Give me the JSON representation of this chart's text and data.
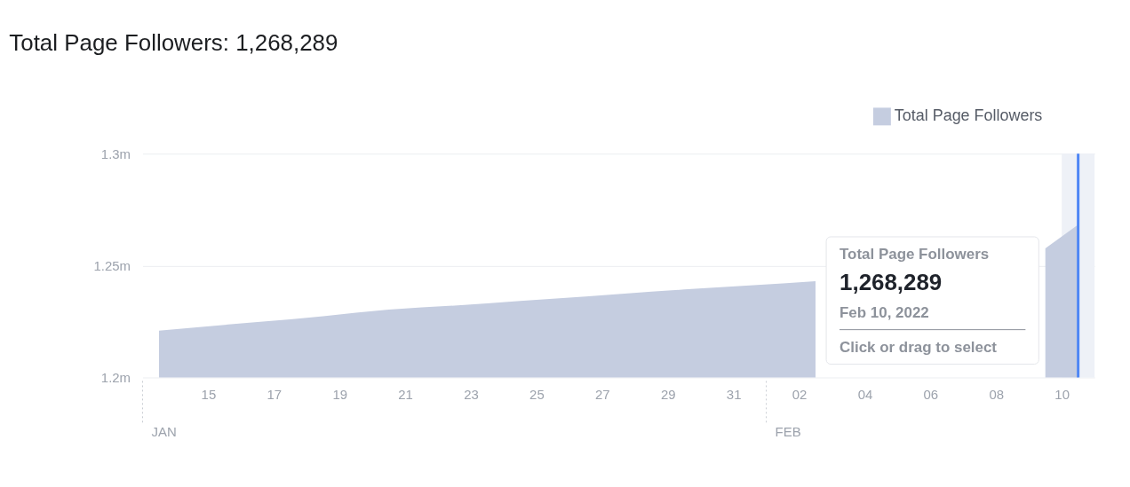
{
  "chart_data": {
    "type": "area",
    "title": "Total Page Followers: 1,268,289",
    "x": [
      "2022-01-13T12:00",
      "2022-01-14T12:00",
      "2022-01-15T12:00",
      "2022-01-16T12:00",
      "2022-01-17T12:00",
      "2022-01-18T12:00",
      "2022-01-19T12:00",
      "2022-01-20T12:00",
      "2022-01-21T12:00",
      "2022-01-22T12:00",
      "2022-01-23T12:00",
      "2022-01-24T12:00",
      "2022-01-25T12:00",
      "2022-01-26T12:00",
      "2022-01-27T12:00",
      "2022-01-28T12:00",
      "2022-01-29T12:00",
      "2022-01-30T12:00",
      "2022-01-31T12:00",
      "2022-02-01T12:00",
      "2022-02-02T12:00",
      "2022-02-03T12:00",
      "2022-02-04T12:00",
      "2022-02-05T12:00",
      "2022-02-06T12:00",
      "2022-02-07T12:00",
      "2022-02-08T12:00",
      "2022-02-09T12:00",
      "2022-02-10T12:00"
    ],
    "series": [
      {
        "name": "Total Page Followers",
        "color": "#c5cde0",
        "values": [
          1220900,
          1222200,
          1223500,
          1224800,
          1226000,
          1227300,
          1228900,
          1230300,
          1231300,
          1232100,
          1233100,
          1234200,
          1235200,
          1236200,
          1237300,
          1238300,
          1239300,
          1240200,
          1241100,
          1242000,
          1243000,
          null,
          null,
          null,
          null,
          null,
          null,
          1257700,
          1268289
        ]
      }
    ],
    "ylim": [
      1200000,
      1300000
    ],
    "yticks": [
      {
        "value": 1200000,
        "label": "1.2m"
      },
      {
        "value": 1250000,
        "label": "1.25m"
      },
      {
        "value": 1300000,
        "label": "1.3m"
      }
    ],
    "xlim": [
      "2022-01-13",
      "2022-02-11"
    ],
    "xticks": [
      {
        "value": "2022-01-15",
        "label": "15"
      },
      {
        "value": "2022-01-17",
        "label": "17"
      },
      {
        "value": "2022-01-19",
        "label": "19"
      },
      {
        "value": "2022-01-21",
        "label": "21"
      },
      {
        "value": "2022-01-23",
        "label": "23"
      },
      {
        "value": "2022-01-25",
        "label": "25"
      },
      {
        "value": "2022-01-27",
        "label": "27"
      },
      {
        "value": "2022-01-29",
        "label": "29"
      },
      {
        "value": "2022-01-31",
        "label": "31"
      },
      {
        "value": "2022-02-02",
        "label": "02"
      },
      {
        "value": "2022-02-04",
        "label": "04"
      },
      {
        "value": "2022-02-06",
        "label": "06"
      },
      {
        "value": "2022-02-08",
        "label": "08"
      },
      {
        "value": "2022-02-10",
        "label": "10"
      }
    ],
    "bands": [
      {
        "axis": "x",
        "from": "2022-02-10",
        "to": "2022-02-11",
        "color": "#eef1f7"
      }
    ],
    "ref_lines": [
      {
        "axis": "x",
        "value": "2022-02-10T12:00",
        "color": "#4e86f5"
      }
    ],
    "annotations": [
      "JAN",
      "FEB",
      "Total Page Followers",
      "1,268,289",
      "Feb 10, 2022",
      "Click or drag to select"
    ],
    "grid": "y",
    "legend": "top right"
  }
}
